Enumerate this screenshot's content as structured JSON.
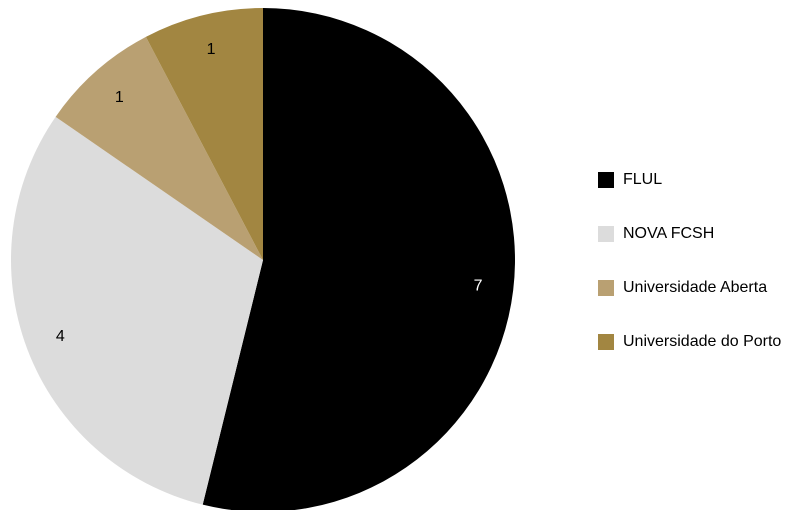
{
  "chart_data": {
    "type": "pie",
    "categories": [
      "FLUL",
      "NOVA FCSH",
      "Universidade Aberta",
      "Universidade do Porto"
    ],
    "values": [
      7,
      4,
      1,
      1
    ],
    "colors": [
      "#000000",
      "#dcdcdc",
      "#b9a072",
      "#a28641"
    ],
    "label_colors": [
      "#ffffff",
      "#000000",
      "#000000",
      "#000000"
    ],
    "legend": "right"
  }
}
